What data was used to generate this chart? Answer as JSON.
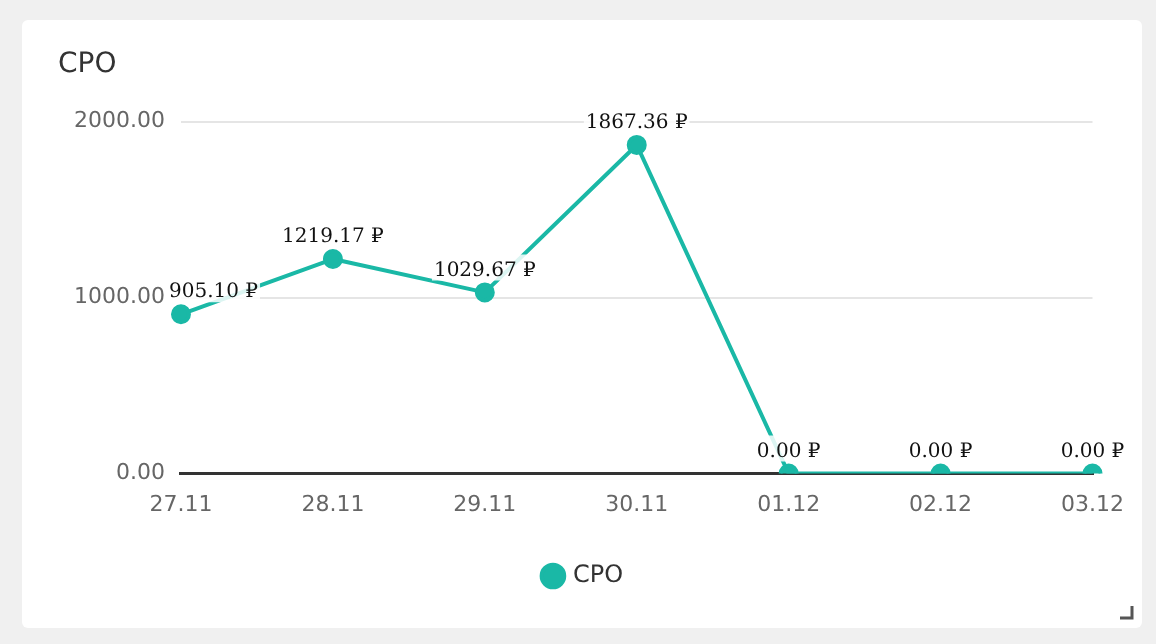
{
  "chart_data": {
    "type": "line",
    "title": "CPO",
    "categories": [
      "27.11",
      "28.11",
      "29.11",
      "30.11",
      "01.12",
      "02.12",
      "03.12"
    ],
    "series": [
      {
        "name": "CPO",
        "color": "#1ab8a6",
        "values": [
          905.1,
          1219.17,
          1029.67,
          1867.36,
          0,
          0,
          0
        ],
        "value_labels": [
          "905.10 ₽",
          "1219.17 ₽",
          "1029.67 ₽",
          "1867.36 ₽",
          "0.00 ₽",
          "0.00 ₽",
          "0.00 ₽"
        ]
      }
    ],
    "ylim": [
      0,
      2000
    ],
    "yticks": [
      {
        "value": 0,
        "label": "0.00"
      },
      {
        "value": 1000,
        "label": "1000.00"
      },
      {
        "value": 2000,
        "label": "2000.00"
      }
    ],
    "grid": "y",
    "legend": "bottom",
    "marker": "circle",
    "line_style": "solid"
  }
}
